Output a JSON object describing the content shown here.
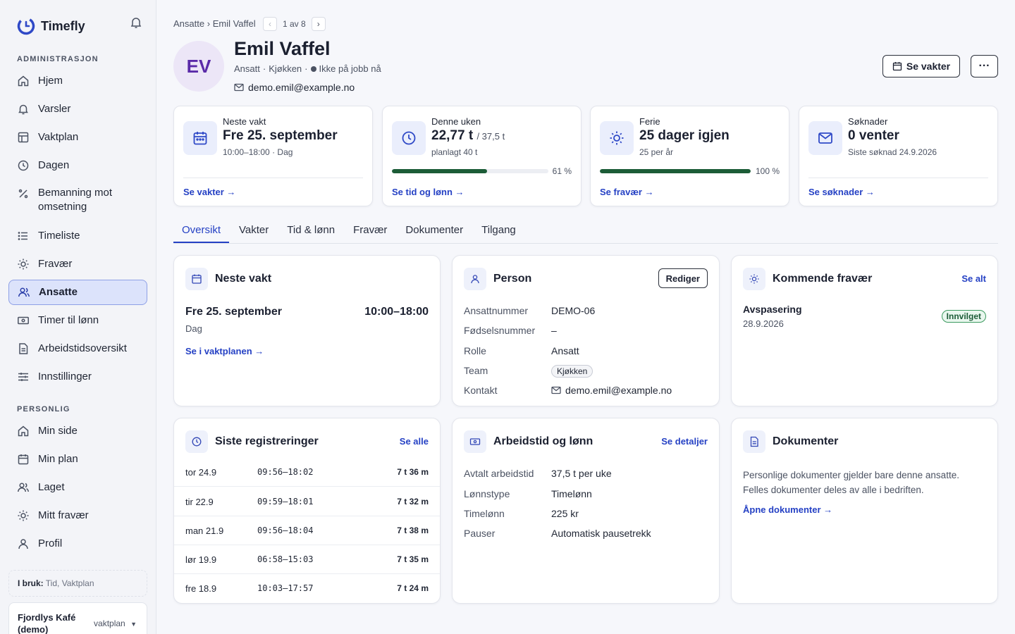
{
  "brand": {
    "name": "Timefly"
  },
  "sidebar": {
    "admin_title": "ADMINISTRASJON",
    "admin_items": [
      {
        "label": "Hjem",
        "icon": "home-icon"
      },
      {
        "label": "Varsler",
        "icon": "bell-icon"
      },
      {
        "label": "Vaktplan",
        "icon": "table-icon"
      },
      {
        "label": "Dagen",
        "icon": "clock-icon"
      },
      {
        "label": "Bemanning mot omsetning",
        "icon": "percent-icon"
      },
      {
        "label": "Timeliste",
        "icon": "list-icon"
      },
      {
        "label": "Fravær",
        "icon": "sun-icon"
      },
      {
        "label": "Ansatte",
        "icon": "users-icon",
        "active": true
      },
      {
        "label": "Timer til lønn",
        "icon": "money-icon"
      },
      {
        "label": "Arbeidstidsoversikt",
        "icon": "document-icon"
      },
      {
        "label": "Innstillinger",
        "icon": "sliders-icon"
      }
    ],
    "personal_title": "PERSONLIG",
    "personal_items": [
      {
        "label": "Min side",
        "icon": "home-icon"
      },
      {
        "label": "Min plan",
        "icon": "calendar-icon"
      },
      {
        "label": "Laget",
        "icon": "users-icon"
      },
      {
        "label": "Mitt fravær",
        "icon": "sun-icon"
      },
      {
        "label": "Profil",
        "icon": "user-icon"
      }
    ],
    "in_use_label": "I bruk:",
    "in_use_value": "Tid, Vaktplan",
    "company_name": "Fjordlys Kafé (demo)",
    "company_plan": "vaktplan"
  },
  "header": {
    "breadcrumb_parent": "Ansatte",
    "breadcrumb_sep": "›",
    "breadcrumb_current": "Emil Vaffel",
    "pager_text": "1 av 8",
    "initials": "EV",
    "name": "Emil Vaffel",
    "role": "Ansatt",
    "team": "Kjøkken",
    "status": "Ikke på jobb nå",
    "email": "demo.emil@example.no",
    "shifts_button": "Se vakter",
    "more_button": "···"
  },
  "stats": {
    "next_shift": {
      "title": "Neste vakt",
      "value": "Fre 25. september",
      "sub": "10:00–18:00 · Dag",
      "link": "Se vakter →"
    },
    "week": {
      "title": "Denne uken",
      "value": "22,77 t",
      "value_suffix": "/ 37,5 t",
      "sub": "planlagt 40 t",
      "progress": 0.61,
      "progress_label": "61 %",
      "link": "Se tid og lønn →"
    },
    "vacation": {
      "title": "Ferie",
      "value": "25 dager igjen",
      "sub": "25 per år",
      "progress": 1.0,
      "progress_label": "100 %",
      "link": "Se fravær →"
    },
    "requests": {
      "title": "Søknader",
      "value": "0 venter",
      "sub": "Siste søknad 24.9.2026",
      "link": "Se søknader →"
    }
  },
  "tabs": [
    "Oversikt",
    "Vakter",
    "Tid & lønn",
    "Fravær",
    "Dokumenter",
    "Tilgang"
  ],
  "next_shift_card": {
    "title": "Neste vakt",
    "date": "Fre 25. september",
    "time": "10:00–18:00",
    "type": "Dag",
    "link": "Se i vaktplanen →"
  },
  "person_card": {
    "title": "Person",
    "edit": "Rediger",
    "rows": [
      {
        "k": "Ansattnummer",
        "v": "DEMO-06"
      },
      {
        "k": "Fødselsnummer",
        "v": "–"
      },
      {
        "k": "Rolle",
        "v": "Ansatt"
      },
      {
        "k": "Team",
        "v": "Kjøkken"
      },
      {
        "k": "Kontakt",
        "v": "demo.emil@example.no"
      }
    ]
  },
  "absence_card": {
    "title": "Kommende fravær",
    "link": "Se alt",
    "item_title": "Avspasering",
    "item_date": "28.9.2026",
    "item_status": "Innvilget"
  },
  "registrations_card": {
    "title": "Siste registreringer",
    "link": "Se alle",
    "rows": [
      {
        "day": "tor 24.9",
        "time": "09:56–18:02",
        "dur": "7 t 36 m"
      },
      {
        "day": "tir 22.9",
        "time": "09:59–18:01",
        "dur": "7 t 32 m"
      },
      {
        "day": "man 21.9",
        "time": "09:56–18:04",
        "dur": "7 t 38 m"
      },
      {
        "day": "lør 19.9",
        "time": "06:58–15:03",
        "dur": "7 t 35 m"
      },
      {
        "day": "fre 18.9",
        "time": "10:03–17:57",
        "dur": "7 t 24 m"
      }
    ]
  },
  "worktime_card": {
    "title": "Arbeidstid og lønn",
    "link": "Se detaljer",
    "rows": [
      {
        "k": "Avtalt arbeidstid",
        "v": "37,5 t per uke"
      },
      {
        "k": "Lønnstype",
        "v": "Timelønn"
      },
      {
        "k": "Timelønn",
        "v": "225 kr"
      },
      {
        "k": "Pauser",
        "v": "Automatisk pausetrekk"
      }
    ]
  },
  "documents_card": {
    "title": "Dokumenter",
    "text1": "Personlige dokumenter gjelder bare denne ansatte.",
    "text2": "Felles dokumenter deles av alle i bedriften.",
    "link": "Åpne dokumenter →"
  },
  "colors": {
    "accent": "#2541c4",
    "progress": "#1c5c37",
    "active_nav": "#dce3fb"
  }
}
